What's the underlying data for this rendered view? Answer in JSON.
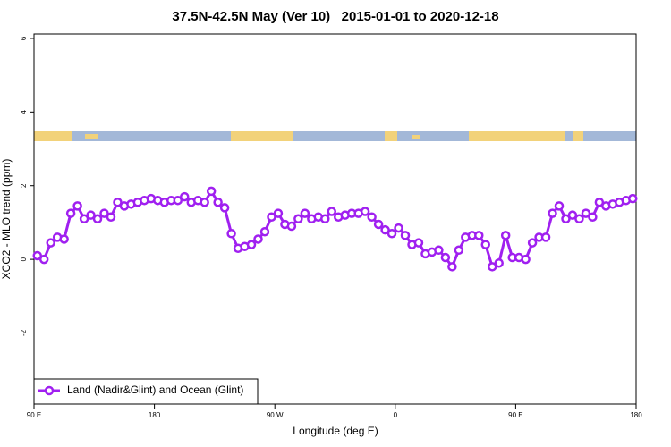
{
  "chart_data": {
    "type": "line",
    "title": "37.5N-42.5N May (Ver 10)   2015-01-01 to 2020-12-18",
    "x_label": "Longitude (deg E)",
    "y_label": "XCO2 - MLO trend (ppm)",
    "x": [
      92.5,
      97.5,
      102.5,
      107.5,
      112.5,
      117.5,
      122.5,
      127.5,
      132.5,
      137.5,
      142.5,
      147.5,
      152.5,
      157.5,
      162.5,
      167.5,
      172.5,
      177.5,
      182.5,
      187.5,
      192.5,
      197.5,
      202.5,
      207.5,
      212.5,
      217.5,
      222.5,
      227.5,
      232.5,
      237.5,
      242.5,
      247.5,
      252.5,
      257.5,
      262.5,
      267.5,
      272.5,
      277.5,
      282.5,
      287.5,
      292.5,
      297.5,
      302.5,
      307.5,
      312.5,
      317.5,
      322.5,
      327.5,
      332.5,
      337.5,
      342.5,
      347.5,
      352.5,
      357.5,
      362.5,
      367.5,
      372.5,
      377.5,
      382.5,
      387.5,
      392.5,
      397.5,
      402.5,
      407.5,
      412.5,
      417.5,
      422.5,
      427.5,
      432.5,
      437.5,
      442.5,
      447.5,
      452.5,
      457.5,
      462.5,
      467.5,
      472.5,
      477.5,
      482.5,
      487.5,
      492.5,
      497.5,
      502.5,
      507.5,
      512.5,
      517.5,
      522.5,
      527.5,
      532.5,
      537.5
    ],
    "series": [
      {
        "name": "Land (Nadir&Glint) and Ocean (Glint)",
        "color": "#a020f0",
        "values": [
          0.1,
          0,
          0.45,
          0.6,
          0.55,
          1.25,
          1.45,
          1.1,
          1.2,
          1.1,
          1.25,
          1.15,
          1.55,
          1.45,
          1.5,
          1.55,
          1.6,
          1.65,
          1.6,
          1.55,
          1.6,
          1.6,
          1.7,
          1.55,
          1.6,
          1.55,
          1.85,
          1.55,
          1.4,
          0.7,
          0.3,
          0.35,
          0.4,
          0.55,
          0.75,
          1.15,
          1.25,
          0.95,
          0.9,
          1.1,
          1.25,
          1.1,
          1.15,
          1.1,
          1.3,
          1.15,
          1.2,
          1.25,
          1.25,
          1.3,
          1.15,
          0.95,
          0.8,
          0.7,
          0.85,
          0.65,
          0.4,
          0.45,
          0.15,
          0.2,
          0.25,
          0.05,
          -0.2,
          0.25,
          0.6,
          0.65,
          0.65,
          0.4,
          -0.2,
          -0.1,
          0.65,
          0.05,
          0.05,
          0,
          0.45,
          0.6,
          0.6,
          1.25,
          1.45,
          1.1,
          1.2,
          1.1,
          1.25,
          1.15,
          1.55,
          1.45,
          1.5,
          1.55,
          1.6,
          1.65
        ]
      }
    ],
    "xlim": [
      90,
      540
    ],
    "xticks": [
      {
        "value": 90,
        "label": "90 E"
      },
      180,
      {
        "value": 270,
        "label": "90 W"
      },
      {
        "value": 360,
        "label": "0"
      },
      {
        "value": 450,
        "label": "90 E"
      },
      {
        "value": 540,
        "label": "180"
      }
    ],
    "ylim": [
      -3.93,
      6.12
    ],
    "yticks": [
      -2,
      0,
      2,
      4,
      6
    ],
    "legend": "bottom-left"
  }
}
